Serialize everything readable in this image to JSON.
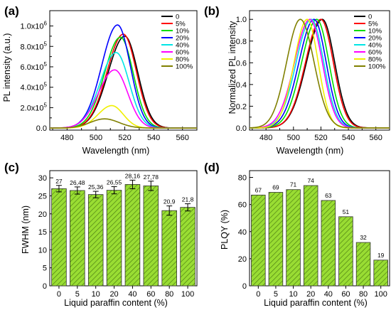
{
  "chart_data": [
    {
      "panel": "(a)",
      "type": "line",
      "xlabel": "Wavelength (nm)",
      "ylabel": "PL intensity (a.u.)",
      "xlim": [
        468,
        570
      ],
      "ylim": [
        -20000,
        1150000
      ],
      "xticks": [
        480,
        500,
        520,
        540,
        560
      ],
      "yticks": [
        0,
        200000,
        400000,
        600000,
        800000,
        1000000
      ],
      "ytick_labels": [
        {
          "mant": "0.0",
          "exp": ""
        },
        {
          "mant": "2.0x10",
          "exp": "5"
        },
        {
          "mant": "4.0x10",
          "exp": "5"
        },
        {
          "mant": "6.0x10",
          "exp": "5"
        },
        {
          "mant": "8.0x10",
          "exp": "5"
        },
        {
          "mant": "1.0x10",
          "exp": "6"
        }
      ],
      "legend_position": "top-right",
      "series": [
        {
          "name": "0",
          "color": "#000000",
          "peak_x": 520,
          "peak_y": 900000,
          "sigma_left": 11.5,
          "sigma_right": 9.0
        },
        {
          "name": "5%",
          "color": "#ff0000",
          "peak_x": 519,
          "peak_y": 920000,
          "sigma_left": 11.2,
          "sigma_right": 9.0
        },
        {
          "name": "10%",
          "color": "#00dd00",
          "peak_x": 517,
          "peak_y": 890000,
          "sigma_left": 11.0,
          "sigma_right": 8.8
        },
        {
          "name": "20%",
          "color": "#0000ff",
          "peak_x": 515,
          "peak_y": 1010000,
          "sigma_left": 11.0,
          "sigma_right": 8.8
        },
        {
          "name": "40%",
          "color": "#00e5e5",
          "peak_x": 514,
          "peak_y": 740000,
          "sigma_left": 11.0,
          "sigma_right": 9.0
        },
        {
          "name": "60%",
          "color": "#ff00ff",
          "peak_x": 513,
          "peak_y": 570000,
          "sigma_left": 11.2,
          "sigma_right": 9.0
        },
        {
          "name": "80%",
          "color": "#f0f000",
          "peak_x": 511,
          "peak_y": 220000,
          "sigma_left": 9.5,
          "sigma_right": 8.0
        },
        {
          "name": "100%",
          "color": "#808000",
          "peak_x": 506,
          "peak_y": 90000,
          "sigma_left": 10.0,
          "sigma_right": 10.0
        }
      ]
    },
    {
      "panel": "(b)",
      "type": "line",
      "xlabel": "Wavelength (nm)",
      "ylabel": "Normalized PL intensity",
      "xlim": [
        468,
        570
      ],
      "ylim": [
        -0.02,
        1.08
      ],
      "xticks": [
        480,
        500,
        520,
        540,
        560
      ],
      "yticks": [
        0.0,
        0.2,
        0.4,
        0.6,
        0.8,
        1.0
      ],
      "ytick_labels": [
        "0.0",
        "0.2",
        "0.4",
        "0.6",
        "0.8",
        "1.0"
      ],
      "legend_position": "top-right",
      "series": [
        {
          "name": "0",
          "color": "#000000",
          "peak_x": 521,
          "peak_y": 1.0,
          "sigma_left": 11.5,
          "sigma_right": 9.0
        },
        {
          "name": "5%",
          "color": "#ff0000",
          "peak_x": 520,
          "peak_y": 1.0,
          "sigma_left": 11.2,
          "sigma_right": 9.0
        },
        {
          "name": "10%",
          "color": "#00dd00",
          "peak_x": 517,
          "peak_y": 1.0,
          "sigma_left": 11.0,
          "sigma_right": 8.8
        },
        {
          "name": "20%",
          "color": "#0000ff",
          "peak_x": 515,
          "peak_y": 1.0,
          "sigma_left": 11.0,
          "sigma_right": 8.8
        },
        {
          "name": "40%",
          "color": "#00e5e5",
          "peak_x": 513,
          "peak_y": 1.0,
          "sigma_left": 11.0,
          "sigma_right": 9.0
        },
        {
          "name": "60%",
          "color": "#ff00ff",
          "peak_x": 512,
          "peak_y": 1.0,
          "sigma_left": 11.2,
          "sigma_right": 9.0
        },
        {
          "name": "80%",
          "color": "#f0f000",
          "peak_x": 510,
          "peak_y": 1.0,
          "sigma_left": 9.5,
          "sigma_right": 8.0
        },
        {
          "name": "100%",
          "color": "#808000",
          "peak_x": 505,
          "peak_y": 1.0,
          "sigma_left": 10.0,
          "sigma_right": 10.0
        }
      ]
    },
    {
      "panel": "(c)",
      "type": "bar",
      "xlabel": "Liquid paraffin content (%)",
      "ylabel": "FWHM (nm)",
      "categories": [
        "0",
        "5",
        "10",
        "20",
        "40",
        "60",
        "80",
        "100"
      ],
      "values": [
        27,
        26.48,
        25.36,
        26.55,
        28.16,
        27.78,
        20.9,
        21.8
      ],
      "value_labels": [
        "27",
        "26,48",
        "25,36",
        "26,55",
        "28,16",
        "27,78",
        "20,9",
        "21,8"
      ],
      "errors": [
        0.9,
        1.0,
        0.9,
        1.0,
        1.2,
        1.3,
        1.3,
        1.0
      ],
      "ylim": [
        0,
        32
      ],
      "yticks": [
        0,
        5,
        10,
        15,
        20,
        25,
        30
      ],
      "ytick_labels": [
        "0",
        "5",
        "10",
        "15",
        "20",
        "25",
        "30"
      ],
      "bar_color": "#99dd33",
      "hatch": "diagonal"
    },
    {
      "panel": "(d)",
      "type": "bar",
      "xlabel": "Liquid paraffin content (%)",
      "ylabel": "PLQY (%)",
      "categories": [
        "0",
        "5",
        "10",
        "20",
        "40",
        "60",
        "80",
        "100"
      ],
      "values": [
        67,
        69,
        71,
        74,
        63,
        51,
        32,
        19
      ],
      "value_labels": [
        "67",
        "69",
        "71",
        "74",
        "63",
        "51",
        "32",
        "19"
      ],
      "ylim": [
        0,
        85
      ],
      "yticks": [
        0,
        20,
        40,
        60,
        80
      ],
      "ytick_labels": [
        "0",
        "20",
        "40",
        "60",
        "80"
      ],
      "bar_color": "#99dd33",
      "hatch": "diagonal"
    }
  ]
}
